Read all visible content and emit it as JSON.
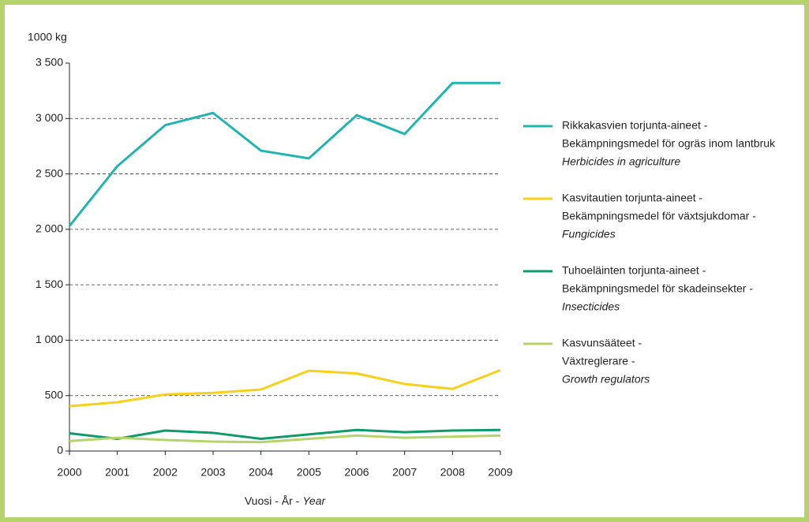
{
  "chart_data": {
    "type": "line",
    "ylabel": "1000 kg",
    "xlabel": [
      "Vuosi - År -",
      "Year"
    ],
    "categories": [
      "2000",
      "2001",
      "2002",
      "2003",
      "2004",
      "2005",
      "2006",
      "2007",
      "2008",
      "2009"
    ],
    "ylim": [
      0,
      3500
    ],
    "yticks": [
      0,
      500,
      {
        "value": 1000,
        "label": "1 000"
      },
      {
        "value": 1500,
        "label": "1 500"
      },
      {
        "value": 2000,
        "label": "2 000"
      },
      {
        "value": 2500,
        "label": "2 500"
      },
      {
        "value": 3000,
        "label": "3 000"
      },
      {
        "value": 3500,
        "label": "3 500"
      }
    ],
    "grid": true,
    "legend": "right",
    "series": [
      {
        "name": [
          "Rikkakasvien torjunta-aineet -",
          "Bekämpningsmedel för ogräs inom lantbruk",
          "Herbicides in agriculture"
        ],
        "color": "#20b5b1",
        "values": [
          2030,
          2570,
          2940,
          3050,
          2710,
          2640,
          3030,
          2860,
          3320,
          3320
        ]
      },
      {
        "name": [
          "Kasvitautien torjunta-aineet -",
          "Bekämpningsmedel för växtsjukdomar -",
          "Fungicides"
        ],
        "color": "#f7d117",
        "values": [
          405,
          440,
          510,
          525,
          555,
          725,
          700,
          605,
          560,
          730
        ]
      },
      {
        "name": [
          "Tuhoeläinten torjunta-aineet -",
          "Bekämpningsmedel för skadeinsekter -",
          "Insecticides"
        ],
        "color": "#0f9a6b",
        "values": [
          160,
          110,
          185,
          164,
          110,
          150,
          190,
          170,
          185,
          190
        ]
      },
      {
        "name": [
          "Kasvunsääteet -",
          "Växtreglerare -",
          "Growth regulators"
        ],
        "color": "#b5d56a",
        "values": [
          90,
          120,
          100,
          85,
          80,
          110,
          140,
          120,
          130,
          140
        ]
      }
    ]
  }
}
